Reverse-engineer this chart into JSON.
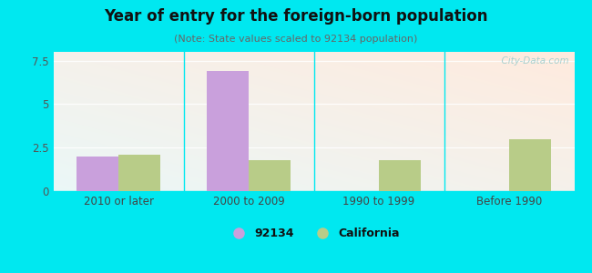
{
  "title": "Year of entry for the foreign-born population",
  "subtitle": "(Note: State values scaled to 92134 population)",
  "categories": [
    "2010 or later",
    "2000 to 2009",
    "1990 to 1999",
    "Before 1990"
  ],
  "values_92134": [
    2.0,
    6.9,
    0.0,
    0.0
  ],
  "values_california": [
    2.1,
    1.8,
    1.8,
    3.0
  ],
  "bar_color_92134": "#c9a0dc",
  "bar_color_california": "#b8cc88",
  "bg_outer": "#00e8f0",
  "ylim": [
    0,
    8.0
  ],
  "yticks": [
    0,
    2.5,
    5,
    7.5
  ],
  "bar_width": 0.32,
  "legend_labels": [
    "92134",
    "California"
  ],
  "watermark": "  City-Data.com"
}
